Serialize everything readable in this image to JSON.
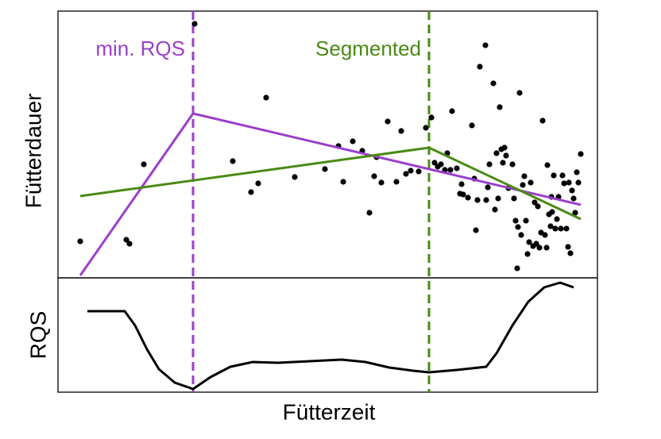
{
  "chart_data": [
    {
      "type": "scatter",
      "ylabel": "Fütterdauer",
      "xlim": [
        73,
        752
      ],
      "ylim": [
        0,
        336
      ],
      "points": {
        "color": "#000000",
        "x": [
          101,
          159,
          163,
          181,
          245,
          293,
          316,
          325,
          335,
          371,
          409,
          426,
          432,
          444,
          456,
          465,
          471,
          474,
          480,
          488,
          499,
          505,
          511,
          517,
          527,
          536,
          543,
          547,
          551,
          555,
          560,
          563,
          567,
          569,
          575,
          579,
          581,
          583,
          589,
          594,
          597,
          599,
          601,
          604,
          611,
          612,
          614,
          616,
          621,
          623,
          625,
          627,
          629,
          631,
          633,
          635,
          637,
          640,
          645,
          647,
          649,
          651,
          652,
          654,
          656,
          658,
          660,
          662,
          664,
          666,
          668,
          671,
          673,
          675,
          677,
          679,
          681,
          683,
          686,
          688,
          689,
          691,
          693,
          694,
          695,
          697,
          699,
          701,
          703,
          706,
          708,
          710,
          713,
          715,
          716,
          718,
          720,
          722,
          724,
          726,
          728,
          731
        ],
        "y": [
          46,
          48,
          43,
          143,
          320,
          147,
          108,
          119,
          227,
          127,
          137,
          166,
          121,
          172,
          160,
          82,
          128,
          152,
          120,
          197,
          121,
          185,
          131,
          135,
          134,
          189,
          202,
          145,
          140,
          143,
          136,
          157,
          136,
          210,
          138,
          106,
          118,
          105,
          101,
          192,
          125,
          60,
          98,
          266,
          293,
          98,
          114,
          143,
          245,
          86,
          157,
          100,
          215,
          162,
          145,
          164,
          154,
          113,
          143,
          100,
          72,
          12,
          64,
          233,
          54,
          117,
          128,
          72,
          30,
          45,
          120,
          40,
          95,
          43,
          90,
          38,
          57,
          198,
          54,
          38,
          142,
          80,
          65,
          102,
          83,
          129,
          62,
          74,
          102,
          62,
          129,
          119,
          62,
          39,
          120,
          31,
          110,
          100,
          82,
          133,
          120,
          156
        ]
      },
      "series": [
        {
          "name": "min. RQS",
          "color": "#9b3fcb",
          "breakpoint": 243,
          "x": [
            101,
            243,
            731
          ],
          "values": [
            3,
            207,
            92
          ]
        },
        {
          "name": "Segmented",
          "color": "#4a8a14",
          "breakpoint": 540,
          "x": [
            101,
            540,
            731
          ],
          "values": [
            103,
            164,
            74
          ]
        }
      ]
    },
    {
      "type": "line",
      "ylabel": "RQS",
      "xlabel": "Fütterzeit",
      "xlim": [
        73,
        752
      ],
      "ylim": [
        0,
        144
      ],
      "color": "#000000",
      "x": [
        110,
        157,
        170,
        185,
        200,
        220,
        243,
        265,
        290,
        318,
        350,
        390,
        430,
        460,
        490,
        520,
        540,
        575,
        612,
        625,
        645,
        665,
        685,
        705,
        722
      ],
      "values": [
        102,
        102,
        84,
        54,
        29,
        12,
        4,
        19,
        32,
        38,
        37,
        39,
        41,
        38,
        31,
        27,
        25,
        28,
        32,
        49,
        84,
        114,
        132,
        138,
        132
      ]
    }
  ]
}
